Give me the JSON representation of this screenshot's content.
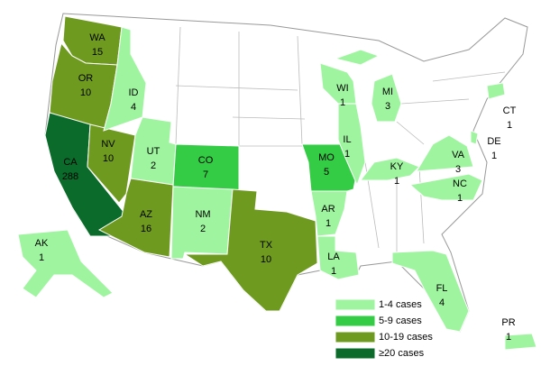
{
  "states": [
    {
      "abbr": "WA",
      "count": 15,
      "color": "#6f9a20"
    },
    {
      "abbr": "OR",
      "count": 10,
      "color": "#6f9a20"
    },
    {
      "abbr": "CA",
      "count": 288,
      "color": "#0a6b2b"
    },
    {
      "abbr": "NV",
      "count": 10,
      "color": "#6f9a20"
    },
    {
      "abbr": "ID",
      "count": 4,
      "color": "#9ff59f"
    },
    {
      "abbr": "UT",
      "count": 2,
      "color": "#9ff59f"
    },
    {
      "abbr": "AZ",
      "count": 16,
      "color": "#6f9a20"
    },
    {
      "abbr": "CO",
      "count": 7,
      "color": "#33cc44"
    },
    {
      "abbr": "NM",
      "count": 2,
      "color": "#9ff59f"
    },
    {
      "abbr": "TX",
      "count": 10,
      "color": "#6f9a20"
    },
    {
      "abbr": "MO",
      "count": 5,
      "color": "#33cc44"
    },
    {
      "abbr": "AR",
      "count": 1,
      "color": "#9ff59f"
    },
    {
      "abbr": "LA",
      "count": 1,
      "color": "#9ff59f"
    },
    {
      "abbr": "IL",
      "count": 1,
      "color": "#9ff59f"
    },
    {
      "abbr": "WI",
      "count": 1,
      "color": "#9ff59f"
    },
    {
      "abbr": "MI",
      "count": 3,
      "color": "#9ff59f"
    },
    {
      "abbr": "KY",
      "count": 1,
      "color": "#9ff59f"
    },
    {
      "abbr": "VA",
      "count": 3,
      "color": "#9ff59f"
    },
    {
      "abbr": "NC",
      "count": 1,
      "color": "#9ff59f"
    },
    {
      "abbr": "FL",
      "count": 4,
      "color": "#9ff59f"
    },
    {
      "abbr": "CT",
      "count": 1,
      "color": "#9ff59f"
    },
    {
      "abbr": "DE",
      "count": 1,
      "color": "#9ff59f"
    },
    {
      "abbr": "AK",
      "count": 1,
      "color": "#9ff59f"
    },
    {
      "abbr": "PR",
      "count": 1,
      "color": "#9ff59f"
    }
  ],
  "legend": [
    {
      "label": "1-4 cases",
      "color": "#9ff59f"
    },
    {
      "label": "5-9 cases",
      "color": "#33cc44"
    },
    {
      "label": "10-19 cases",
      "color": "#6f9a20"
    },
    {
      "label": "≥20 cases",
      "color": "#0a6b2b"
    }
  ]
}
